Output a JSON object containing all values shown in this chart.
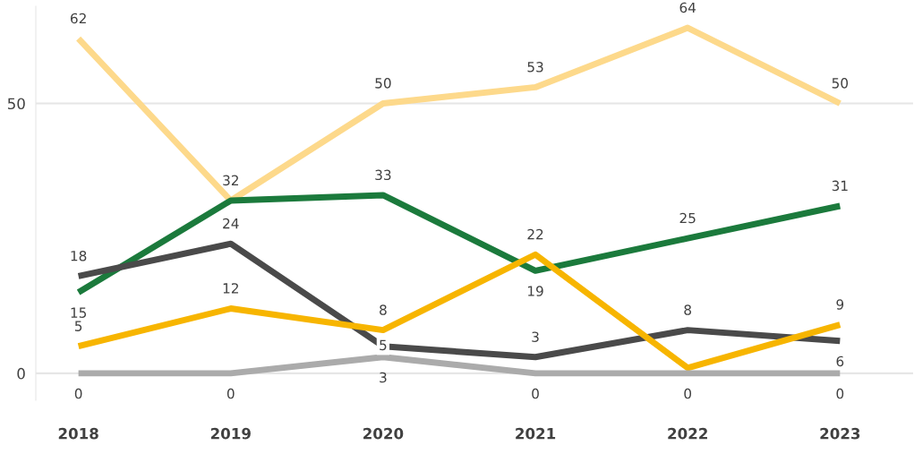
{
  "chart_data": {
    "type": "line",
    "categories": [
      "2018",
      "2019",
      "2020",
      "2021",
      "2022",
      "2023"
    ],
    "series": [
      {
        "color": "#fdd98b",
        "values": [
          62,
          32,
          50,
          53,
          64,
          50
        ],
        "value_labels": [
          "62",
          "32",
          "50",
          "53",
          "64",
          "50"
        ]
      },
      {
        "color": "#1b7a3c",
        "values": [
          15,
          32,
          33,
          19,
          25,
          31
        ],
        "value_labels": [
          "15",
          null,
          "33",
          "19",
          "25",
          "31"
        ]
      },
      {
        "color": "#4a4a4a",
        "values": [
          18,
          24,
          5,
          3,
          8,
          6
        ],
        "value_labels": [
          "18",
          "24",
          "5",
          "3",
          "8",
          "6"
        ]
      },
      {
        "color": "#f7b500",
        "values": [
          5,
          12,
          8,
          22,
          1,
          9
        ],
        "value_labels": [
          "5",
          "12",
          "8",
          "22",
          null,
          "9"
        ]
      },
      {
        "color": "#ababab",
        "values": [
          0,
          0,
          3,
          0,
          0,
          0
        ],
        "value_labels": [
          "0",
          "0",
          "3",
          "0",
          "0",
          "0"
        ]
      }
    ],
    "ylim": [
      -5,
      68
    ],
    "yticks": [
      0,
      50
    ],
    "grid": "y",
    "legend": false,
    "marker": "none",
    "line_style": "solid"
  }
}
